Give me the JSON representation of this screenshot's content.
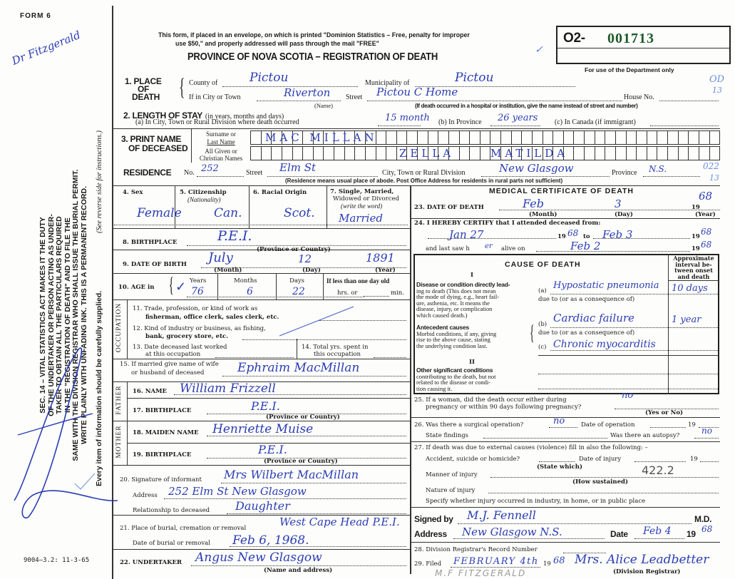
{
  "header": {
    "form_number": "FORM 6",
    "margin_signature": "Dr Fitzgerald",
    "notice_line1": "This form, if placed in an envelope, on which is printed \"Dominion Statistics – Free, penalty for improper",
    "notice_line2": "use $50,\" and properly addressed will pass through the mail \"FREE\"",
    "title": "PROVINCE OF NOVA SCOTIA – REGISTRATION OF DEATH",
    "reg_prefix": "O2-",
    "reg_number": "001713",
    "dept_note": "For use of the Department only",
    "dept_mark1": "OD",
    "dept_mark2": "13",
    "reg_number_color": "#1d5a2b",
    "ink_color": "#2b3db5"
  },
  "margin": {
    "lines": [
      "SEC. 14 – VITAL STATISTICS ACT MAKES IT THE DUTY",
      "OF THE UNDERTAKER OR PERSON ACTING AS UNDER-",
      "TAKER TO OBTAIN ALL THE PARTICULARS REQUIRED",
      "IN THE \"REGISTRATION OF DEATH\" AND TO FILE THE",
      "SAME WITH THE DIVISION REGISTRAR WHO SHALL ISSUE THE BURIAL PERMIT.",
      "WRITE PLAINLY WITH UNFADING INK. THIS IS A PERMANENT RECORD."
    ],
    "every_item": "Every item of information should be carefully supplied.",
    "see_reverse": "(See reverse side for instructions.)",
    "print_code": "9004–3.2: 11-3-65"
  },
  "place": {
    "label1": "1. PLACE",
    "label2": "OF",
    "label3": "DEATH",
    "county_label": "County of",
    "county": "Pictou",
    "municipality_label": "Municipality of",
    "municipality": "Pictou",
    "city_label": "If in City or Town",
    "city": "Riverton",
    "name_note": "(Name)",
    "street_label": "Street",
    "street": "Pictou C Home",
    "house_label": "House No.",
    "institution_note": "(If death occurred in a hospital or institution, give the name instead of street and number)"
  },
  "stay": {
    "label": "2. LENGTH OF STAY",
    "label_note": "(in years, months and days)",
    "a_label": "(a) In City, Town or Rural Division where death occurred",
    "a_value": "15 month",
    "b_label": "(b) In Province",
    "b_value": "26 years",
    "c_label": "(c) In Canada (if immigrant)"
  },
  "name": {
    "label1": "3. PRINT NAME",
    "label2": "OF DECEASED",
    "surname_label1": "Surname or",
    "surname_label2": "Last Name",
    "given_label1": "All Given or",
    "given_label2": "Christian Names",
    "surname": "MAC MILLAN",
    "given_first": "ZELLA",
    "given_middle": "MATILDA"
  },
  "residence": {
    "label": "RESIDENCE",
    "no_label": "No.",
    "no": "252",
    "street_label": "Street",
    "street": "Elm St",
    "city_label": "City, Town or Rural Division",
    "city": "New Glasgow",
    "province_label": "Province",
    "province": "N.S.",
    "dept_mark1": "022",
    "dept_mark2": "13",
    "note": "(Residence means usual place of abode. Post Office Address for residents in rural parts not sufficient)"
  },
  "personal": {
    "sex_label": "4. Sex",
    "sex": "Female",
    "citizenship_label": "5. Citizenship",
    "citizenship_note": "(Nationality)",
    "citizenship": "Can.",
    "racial_label": "6. Racial Origin",
    "racial": "Scot.",
    "marital_label1": "7. Single, Married,",
    "marital_label2": "Widowed or Divorced",
    "marital_label3": "(write the word)",
    "marital": "Married",
    "birthplace_label": "8. BIRTHPLACE",
    "birthplace": "P.E.I.",
    "birthplace_note": "(Province or Country)",
    "dob_label": "9. DATE OF BIRTH",
    "dob_month": "July",
    "dob_day": "12",
    "dob_year": "1891",
    "month_note": "(Month)",
    "day_note": "(Day)",
    "year_note": "(Year)",
    "age_label": "10. AGE in",
    "years_label": "Years",
    "years": "76",
    "months_label": "Months",
    "months": "6",
    "days_label": "Days",
    "days": "22",
    "lessday_label": "If less than one day old",
    "hrs_label": "hrs. or",
    "min_label": "min."
  },
  "occupation": {
    "side_label": "OCCUPATION",
    "q11a": "11. Trade, profession, or kind of work as",
    "q11b": "fisherman, office clerk, sales clerk, etc.",
    "q12a": "12. Kind of industry or business, as fishing,",
    "q12b": "bank, grocery store, etc.",
    "q13a": "13. Date deceased last worked",
    "q13b": "at this occupation",
    "q14a": "14. Total yrs. spent in",
    "q14b": "this occupation"
  },
  "spouse": {
    "label1": "15. If married give name of wife",
    "label2": "or husband of deceased",
    "value": "Ephraim MacMillan"
  },
  "father": {
    "side_label": "FATHER",
    "name_label": "16. NAME",
    "name": "William Frizzell",
    "birthplace_label": "17. BIRTHPLACE",
    "birthplace": "P.E.I.",
    "note": "(Province or Country)"
  },
  "mother": {
    "side_label": "MOTHER",
    "name_label": "18. MAIDEN NAME",
    "name": "Henriette Muise",
    "birthplace_label": "19. BIRTHPLACE",
    "birthplace": "P.E.I.",
    "note": "(Province or Country)"
  },
  "informant": {
    "sig_label": "20. Signature of informant",
    "signature": "Mrs Wilbert MacMillan",
    "address_label": "Address",
    "address": "252 Elm St New Glasgow",
    "relationship_label": "Relationship to deceased",
    "relationship": "Daughter"
  },
  "burial": {
    "place_label": "21. Place of burial, cremation or removal",
    "place": "West Cape Head P.E.I.",
    "date_label": "Date of burial or removal",
    "date": "Feb 6, 1968."
  },
  "undertaker": {
    "label": "22. UNDERTAKER",
    "value": "Angus New Glasgow",
    "note": "(Name and address)"
  },
  "medical": {
    "title": "MEDICAL CERTIFICATE OF DEATH",
    "dod_label": "23. DATE OF DEATH",
    "dod_month": "Feb",
    "dod_day": "3",
    "dod_year_prefix": "19",
    "dod_year": "68",
    "month_note": "(Month)",
    "day_note": "(Day)",
    "year_note": "(Year)",
    "certify_label": "24. I HEREBY CERTIFY that I attended deceased from:",
    "from": "Jan 27",
    "from_year": "68",
    "to_label": "to",
    "to": "Feb 3",
    "to_year": "68",
    "yr_prefix": "19",
    "lastsaw_label": "and last saw h",
    "lastsaw_pronoun": "er",
    "alive_label": "alive on",
    "alive_date": "Feb 2",
    "alive_year": "68"
  },
  "cause": {
    "title": "CAUSE OF DEATH",
    "interval_label": [
      "Approximate",
      "interval be-",
      "tween onset",
      "and death"
    ],
    "part1": "I",
    "direct_label": [
      "Disease or condition directly lead-",
      "ing to death (This does not mean",
      "the mode of dying, e.g., heart fail-",
      "ure, asthenia, etc. It means the",
      "disease, injury, or complication",
      "which caused death.)"
    ],
    "a_label": "(a)",
    "a_value": "Hypostatic pneumonia",
    "a_interval": "10 days",
    "due_to": "due to (or as a consequence of)",
    "antecedent_title": "Antecedent causes",
    "antecedent_label": [
      "Morbid conditions, if any, giving",
      "rise to the above cause, stating",
      "the underlying condition last."
    ],
    "b_label": "(b)",
    "b_value": "Cardiac failure",
    "b_interval": "1 year",
    "c_label": "(c)",
    "c_value": "Chronic myocarditis",
    "part2": "II",
    "other_title": "Other significant conditions",
    "other_label": [
      "contributing to the death, but not",
      "related to the disease or condi-",
      "tion causing it."
    ]
  },
  "pregnancy": {
    "label1": "25. If a woman, did the death occur either during",
    "label2": "pregnancy or within 90 days following pregnancy?",
    "value": "no",
    "note": "(Yes or No)"
  },
  "surgery": {
    "label": "26. Was there a surgical operation?",
    "value": "no",
    "date_label": "Date of operation",
    "yr_prefix": "19",
    "findings_label": "State findings",
    "autopsy_label": "Was there an autopsy?",
    "autopsy": "no"
  },
  "external": {
    "label": "27. If death was due to external causes (violence) fill in also the following: –",
    "accident_label": "Accident, suicide or homicide?",
    "state_note": "(State which)",
    "injury_date_label": "Date of injury",
    "yr_prefix": "19",
    "manner_label": "Manner of injury",
    "code": "422.2",
    "how_note": "(How sustained)",
    "nature_label": "Nature of injury",
    "specify_label": "Specify whether injury occurred in industry, in home, or in public place"
  },
  "signature": {
    "signed_label": "Signed by",
    "signed": "M.J. Fennell",
    "md": "M.D.",
    "address_label": "Address",
    "address": "New Glasgow N.S.",
    "date_label": "Date",
    "date": "Feb 4",
    "yr_prefix": "19",
    "year": "68"
  },
  "registrar": {
    "record_label": "28. Division Registrar's Record Number",
    "filed_label": "29. Filed",
    "filed_date": "FEBRUARY 4th",
    "yr_prefix": "19",
    "filed_year": "68",
    "registrar_signature": "Mrs. Alice Leadbetter",
    "registrar_note": "(Division Registrar)",
    "stamp": "M.F FITZGERALD"
  }
}
